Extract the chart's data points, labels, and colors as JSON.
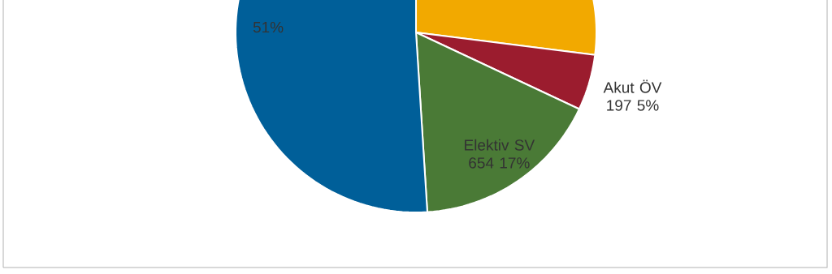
{
  "chart_data": {
    "type": "pie",
    "categories": [
      null,
      "Akut ÖV",
      "Elektiv SV",
      null
    ],
    "values": [
      27,
      5,
      17,
      51
    ],
    "colors": [
      "#f2a900",
      "#9b1c2e",
      "#4a7a36",
      "#005f99"
    ],
    "value_labels": [
      null,
      "197 5%",
      "654 17%",
      "51%"
    ]
  }
}
